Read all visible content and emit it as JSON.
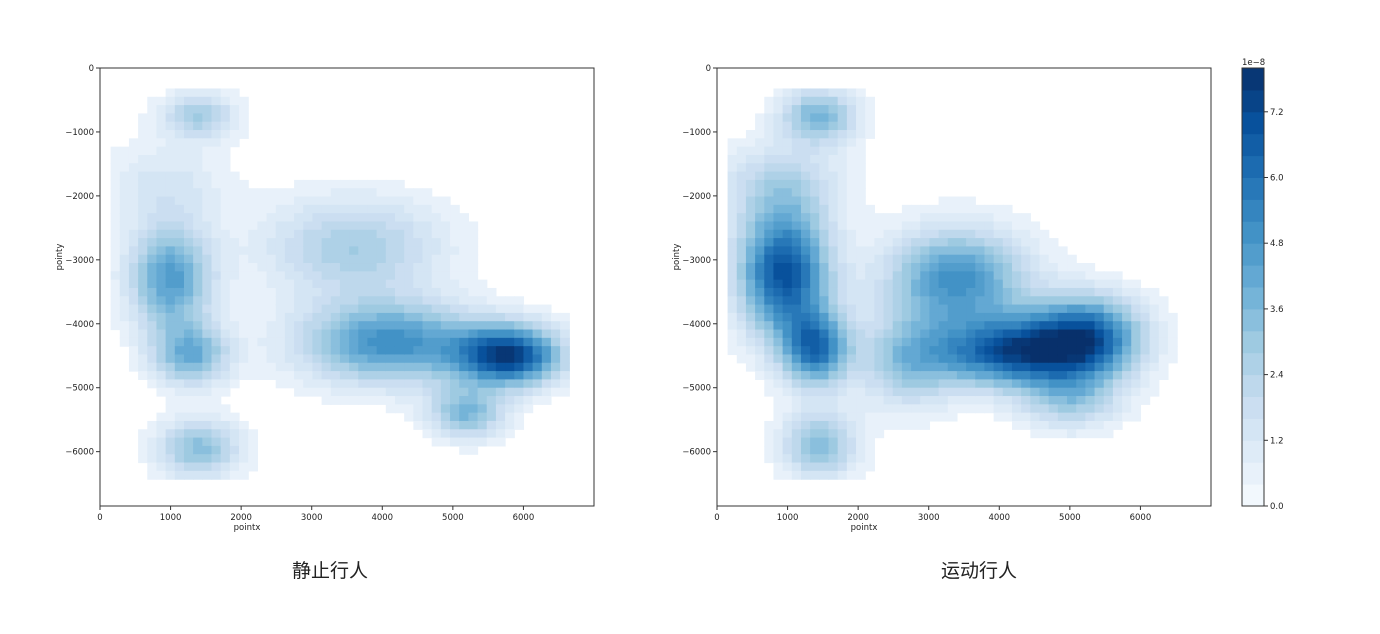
{
  "chart_data": [
    {
      "type": "contour",
      "caption": "静止行人",
      "xlabel": "pointx",
      "ylabel": "pointy",
      "xlim": [
        0,
        7000
      ],
      "ylim": [
        -6850,
        0
      ],
      "xticks": [
        0,
        1000,
        2000,
        3000,
        4000,
        5000,
        6000
      ],
      "yticks": [
        0,
        -1000,
        -2000,
        -3000,
        -4000,
        -5000,
        -6000
      ],
      "xtick_labels": [
        "0",
        "1000",
        "2000",
        "3000",
        "4000",
        "5000",
        "6000"
      ],
      "ytick_labels": [
        "0",
        "−1000",
        "−2000",
        "−3000",
        "−4000",
        "−5000",
        "−6000"
      ],
      "density_peaks": [
        {
          "x": 1400,
          "y": -750,
          "sx": 380,
          "sy": 260,
          "value": 2.8
        },
        {
          "x": 1000,
          "y": -3300,
          "sx": 420,
          "sy": 600,
          "value": 4.6
        },
        {
          "x": 1300,
          "y": -4500,
          "sx": 380,
          "sy": 330,
          "value": 3.8
        },
        {
          "x": 3600,
          "y": -2800,
          "sx": 900,
          "sy": 550,
          "value": 2.8
        },
        {
          "x": 4100,
          "y": -4300,
          "sx": 900,
          "sy": 450,
          "value": 5.0
        },
        {
          "x": 5800,
          "y": -4500,
          "sx": 520,
          "sy": 330,
          "value": 7.2
        },
        {
          "x": 5200,
          "y": -5400,
          "sx": 380,
          "sy": 280,
          "value": 3.6
        },
        {
          "x": 1400,
          "y": -5950,
          "sx": 420,
          "sy": 330,
          "value": 3.4
        },
        {
          "x": 900,
          "y": -1800,
          "sx": 650,
          "sy": 450,
          "value": 1.3
        }
      ]
    },
    {
      "type": "contour",
      "caption": "运动行人",
      "xlabel": "pointx",
      "ylabel": "pointy",
      "xlim": [
        0,
        7000
      ],
      "ylim": [
        -6850,
        0
      ],
      "xticks": [
        0,
        1000,
        2000,
        3000,
        4000,
        5000,
        6000
      ],
      "yticks": [
        0,
        -1000,
        -2000,
        -3000,
        -4000,
        -5000,
        -6000
      ],
      "xtick_labels": [
        "0",
        "1000",
        "2000",
        "3000",
        "4000",
        "5000",
        "6000"
      ],
      "ytick_labels": [
        "0",
        "−1000",
        "−2000",
        "−3000",
        "−4000",
        "−5000",
        "−6000"
      ],
      "density_peaks": [
        {
          "x": 1450,
          "y": -750,
          "sx": 380,
          "sy": 300,
          "value": 3.8
        },
        {
          "x": 950,
          "y": -3200,
          "sx": 450,
          "sy": 700,
          "value": 7.0
        },
        {
          "x": 1400,
          "y": -4400,
          "sx": 330,
          "sy": 400,
          "value": 5.6
        },
        {
          "x": 1450,
          "y": -5900,
          "sx": 380,
          "sy": 380,
          "value": 3.4
        },
        {
          "x": 3400,
          "y": -3300,
          "sx": 700,
          "sy": 550,
          "value": 5.0
        },
        {
          "x": 4200,
          "y": -4450,
          "sx": 750,
          "sy": 380,
          "value": 6.6
        },
        {
          "x": 5250,
          "y": -4200,
          "sx": 550,
          "sy": 450,
          "value": 6.0
        },
        {
          "x": 5000,
          "y": -5200,
          "sx": 500,
          "sy": 330,
          "value": 2.6
        },
        {
          "x": 2700,
          "y": -4600,
          "sx": 500,
          "sy": 500,
          "value": 3.0
        },
        {
          "x": 900,
          "y": -1800,
          "sx": 650,
          "sy": 450,
          "value": 2.0
        }
      ]
    }
  ],
  "colorbar": {
    "exponent_label": "1e−8",
    "min": 0.0,
    "max": 8.0,
    "ticks": [
      0.0,
      1.2,
      2.4,
      3.6,
      4.8,
      6.0,
      7.2
    ],
    "tick_labels": [
      "0.0",
      "1.2",
      "2.4",
      "3.6",
      "4.8",
      "6.0",
      "7.2"
    ],
    "levels": 20
  },
  "colors": {
    "colormap": [
      "#f7fbff",
      "#deebf7",
      "#c6dbef",
      "#9ecae1",
      "#6baed6",
      "#4292c6",
      "#2171b5",
      "#08519c",
      "#08306b"
    ]
  }
}
